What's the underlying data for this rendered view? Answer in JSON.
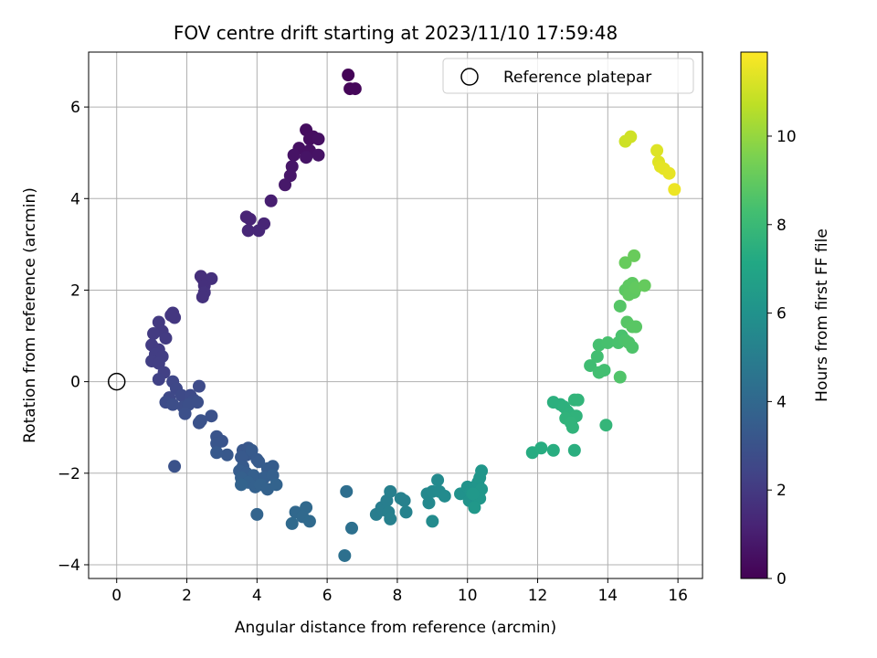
{
  "chart_data": {
    "type": "scatter",
    "title": "FOV centre drift starting at 2023/11/10 17:59:48",
    "xlabel": "Angular distance from reference (arcmin)",
    "ylabel": "Rotation from reference (arcmin)",
    "xlim": [
      -0.8,
      16.7
    ],
    "ylim": [
      -4.3,
      7.2
    ],
    "xticks": [
      "0",
      "2",
      "4",
      "6",
      "8",
      "10",
      "12",
      "14",
      "16"
    ],
    "yticks": [
      "−4",
      "−2",
      "0",
      "2",
      "4",
      "6"
    ],
    "grid": true,
    "legend": {
      "placement": "top-right",
      "entries": [
        "Reference platepar"
      ]
    },
    "reference_point": {
      "x": 0,
      "y": 0,
      "label": "Reference platepar"
    },
    "colorbar": {
      "label": "Hours from first FF file",
      "colormap": "viridis",
      "range": [
        0,
        11.9
      ],
      "ticks": [
        "0",
        "2",
        "4",
        "6",
        "8",
        "10"
      ]
    },
    "points": [
      {
        "x": 6.6,
        "y": 6.7,
        "h": 0.1
      },
      {
        "x": 6.65,
        "y": 6.4,
        "h": 0.15
      },
      {
        "x": 6.8,
        "y": 6.4,
        "h": 0.2
      },
      {
        "x": 5.4,
        "y": 5.5,
        "h": 0.4
      },
      {
        "x": 5.5,
        "y": 5.3,
        "h": 0.45
      },
      {
        "x": 5.6,
        "y": 5.35,
        "h": 0.45
      },
      {
        "x": 5.75,
        "y": 5.3,
        "h": 0.5
      },
      {
        "x": 5.2,
        "y": 5.1,
        "h": 0.55
      },
      {
        "x": 5.5,
        "y": 5.05,
        "h": 0.55
      },
      {
        "x": 5.05,
        "y": 4.95,
        "h": 0.6
      },
      {
        "x": 5.75,
        "y": 4.95,
        "h": 0.6
      },
      {
        "x": 5.4,
        "y": 4.9,
        "h": 0.65
      },
      {
        "x": 5.0,
        "y": 4.7,
        "h": 0.7
      },
      {
        "x": 4.95,
        "y": 4.5,
        "h": 0.75
      },
      {
        "x": 4.8,
        "y": 4.3,
        "h": 0.8
      },
      {
        "x": 4.4,
        "y": 3.95,
        "h": 1.0
      },
      {
        "x": 3.7,
        "y": 3.6,
        "h": 1.2
      },
      {
        "x": 3.8,
        "y": 3.55,
        "h": 1.2
      },
      {
        "x": 4.2,
        "y": 3.45,
        "h": 1.25
      },
      {
        "x": 3.75,
        "y": 3.3,
        "h": 1.3
      },
      {
        "x": 4.05,
        "y": 3.3,
        "h": 1.3
      },
      {
        "x": 2.4,
        "y": 2.3,
        "h": 1.6
      },
      {
        "x": 2.45,
        "y": 2.25,
        "h": 1.6
      },
      {
        "x": 2.7,
        "y": 2.25,
        "h": 1.65
      },
      {
        "x": 2.5,
        "y": 2.1,
        "h": 1.65
      },
      {
        "x": 2.5,
        "y": 1.95,
        "h": 1.7
      },
      {
        "x": 2.45,
        "y": 1.85,
        "h": 1.7
      },
      {
        "x": 1.6,
        "y": 1.5,
        "h": 1.9
      },
      {
        "x": 1.65,
        "y": 1.4,
        "h": 1.9
      },
      {
        "x": 1.55,
        "y": 1.45,
        "h": 1.9
      },
      {
        "x": 1.2,
        "y": 1.3,
        "h": 2.0
      },
      {
        "x": 1.3,
        "y": 1.1,
        "h": 2.0
      },
      {
        "x": 1.05,
        "y": 1.05,
        "h": 2.05
      },
      {
        "x": 1.4,
        "y": 0.95,
        "h": 2.05
      },
      {
        "x": 1.0,
        "y": 0.8,
        "h": 2.1
      },
      {
        "x": 1.2,
        "y": 0.7,
        "h": 2.1
      },
      {
        "x": 1.1,
        "y": 0.6,
        "h": 2.15
      },
      {
        "x": 1.3,
        "y": 0.55,
        "h": 2.15
      },
      {
        "x": 1.0,
        "y": 0.45,
        "h": 2.2
      },
      {
        "x": 1.2,
        "y": 0.4,
        "h": 2.2
      },
      {
        "x": 1.35,
        "y": 0.2,
        "h": 2.25
      },
      {
        "x": 1.2,
        "y": 0.05,
        "h": 2.3
      },
      {
        "x": 1.6,
        "y": 0.0,
        "h": 2.5
      },
      {
        "x": 1.7,
        "y": -0.15,
        "h": 2.55
      },
      {
        "x": 1.5,
        "y": -0.35,
        "h": 2.6
      },
      {
        "x": 1.85,
        "y": -0.3,
        "h": 2.65
      },
      {
        "x": 2.1,
        "y": -0.3,
        "h": 2.7
      },
      {
        "x": 2.35,
        "y": -0.1,
        "h": 2.7
      },
      {
        "x": 2.2,
        "y": -0.4,
        "h": 2.75
      },
      {
        "x": 1.4,
        "y": -0.45,
        "h": 2.75
      },
      {
        "x": 1.6,
        "y": -0.5,
        "h": 2.8
      },
      {
        "x": 1.9,
        "y": -0.55,
        "h": 2.8
      },
      {
        "x": 2.05,
        "y": -0.5,
        "h": 2.85
      },
      {
        "x": 2.3,
        "y": -0.45,
        "h": 2.85
      },
      {
        "x": 1.95,
        "y": -0.7,
        "h": 2.9
      },
      {
        "x": 2.7,
        "y": -0.75,
        "h": 2.95
      },
      {
        "x": 2.35,
        "y": -0.9,
        "h": 2.95
      },
      {
        "x": 2.4,
        "y": -0.85,
        "h": 3.0
      },
      {
        "x": 1.65,
        "y": -1.85,
        "h": 3.0
      },
      {
        "x": 2.85,
        "y": -1.2,
        "h": 3.1
      },
      {
        "x": 3.0,
        "y": -1.3,
        "h": 3.1
      },
      {
        "x": 2.85,
        "y": -1.35,
        "h": 3.15
      },
      {
        "x": 3.6,
        "y": -1.5,
        "h": 3.2
      },
      {
        "x": 3.75,
        "y": -1.45,
        "h": 3.2
      },
      {
        "x": 3.7,
        "y": -1.6,
        "h": 3.25
      },
      {
        "x": 3.15,
        "y": -1.6,
        "h": 3.25
      },
      {
        "x": 3.55,
        "y": -1.65,
        "h": 3.3
      },
      {
        "x": 2.85,
        "y": -1.55,
        "h": 3.3
      },
      {
        "x": 3.85,
        "y": -1.5,
        "h": 3.35
      },
      {
        "x": 4.0,
        "y": -1.7,
        "h": 3.35
      },
      {
        "x": 4.05,
        "y": -1.75,
        "h": 3.4
      },
      {
        "x": 3.6,
        "y": -1.85,
        "h": 3.4
      },
      {
        "x": 4.3,
        "y": -1.9,
        "h": 3.45
      },
      {
        "x": 4.45,
        "y": -1.85,
        "h": 3.45
      },
      {
        "x": 3.5,
        "y": -1.95,
        "h": 3.5
      },
      {
        "x": 3.7,
        "y": -2.0,
        "h": 3.5
      },
      {
        "x": 3.9,
        "y": -2.05,
        "h": 3.55
      },
      {
        "x": 4.2,
        "y": -2.1,
        "h": 3.55
      },
      {
        "x": 4.45,
        "y": -2.05,
        "h": 3.6
      },
      {
        "x": 3.55,
        "y": -2.1,
        "h": 3.6
      },
      {
        "x": 3.75,
        "y": -2.2,
        "h": 3.65
      },
      {
        "x": 3.95,
        "y": -2.3,
        "h": 3.65
      },
      {
        "x": 4.1,
        "y": -2.25,
        "h": 3.7
      },
      {
        "x": 4.3,
        "y": -2.35,
        "h": 3.7
      },
      {
        "x": 4.55,
        "y": -2.25,
        "h": 3.75
      },
      {
        "x": 3.55,
        "y": -2.25,
        "h": 3.75
      },
      {
        "x": 4.0,
        "y": -2.9,
        "h": 3.8
      },
      {
        "x": 5.1,
        "y": -2.85,
        "h": 4.0
      },
      {
        "x": 5.4,
        "y": -2.75,
        "h": 4.05
      },
      {
        "x": 5.3,
        "y": -2.95,
        "h": 4.05
      },
      {
        "x": 5.0,
        "y": -3.1,
        "h": 4.1
      },
      {
        "x": 5.5,
        "y": -3.05,
        "h": 4.1
      },
      {
        "x": 6.55,
        "y": -2.4,
        "h": 4.3
      },
      {
        "x": 6.7,
        "y": -3.2,
        "h": 4.4
      },
      {
        "x": 6.5,
        "y": -3.8,
        "h": 4.4
      },
      {
        "x": 7.4,
        "y": -2.9,
        "h": 5.0
      },
      {
        "x": 7.55,
        "y": -2.75,
        "h": 5.0
      },
      {
        "x": 7.6,
        "y": -2.8,
        "h": 5.05
      },
      {
        "x": 7.7,
        "y": -2.6,
        "h": 5.05
      },
      {
        "x": 7.8,
        "y": -2.4,
        "h": 5.1
      },
      {
        "x": 7.75,
        "y": -2.85,
        "h": 5.1
      },
      {
        "x": 7.8,
        "y": -3.0,
        "h": 5.15
      },
      {
        "x": 8.1,
        "y": -2.55,
        "h": 5.2
      },
      {
        "x": 8.2,
        "y": -2.6,
        "h": 5.2
      },
      {
        "x": 8.25,
        "y": -2.85,
        "h": 5.25
      },
      {
        "x": 8.85,
        "y": -2.45,
        "h": 5.5
      },
      {
        "x": 8.9,
        "y": -2.65,
        "h": 5.5
      },
      {
        "x": 9.0,
        "y": -2.4,
        "h": 5.55
      },
      {
        "x": 9.15,
        "y": -2.15,
        "h": 5.6
      },
      {
        "x": 9.2,
        "y": -2.4,
        "h": 5.6
      },
      {
        "x": 9.35,
        "y": -2.5,
        "h": 5.65
      },
      {
        "x": 9.0,
        "y": -3.05,
        "h": 5.65
      },
      {
        "x": 9.8,
        "y": -2.45,
        "h": 6.0
      },
      {
        "x": 10.0,
        "y": -2.3,
        "h": 6.05
      },
      {
        "x": 10.05,
        "y": -2.6,
        "h": 6.05
      },
      {
        "x": 10.1,
        "y": -2.4,
        "h": 6.1
      },
      {
        "x": 10.2,
        "y": -2.3,
        "h": 6.1
      },
      {
        "x": 10.25,
        "y": -2.5,
        "h": 6.15
      },
      {
        "x": 10.3,
        "y": -2.2,
        "h": 6.15
      },
      {
        "x": 10.35,
        "y": -2.1,
        "h": 6.2
      },
      {
        "x": 10.4,
        "y": -1.95,
        "h": 6.2
      },
      {
        "x": 10.4,
        "y": -2.35,
        "h": 6.25
      },
      {
        "x": 10.35,
        "y": -2.55,
        "h": 6.25
      },
      {
        "x": 10.2,
        "y": -2.75,
        "h": 6.3
      },
      {
        "x": 10.15,
        "y": -2.45,
        "h": 6.3
      },
      {
        "x": 11.85,
        "y": -1.55,
        "h": 7.3
      },
      {
        "x": 12.1,
        "y": -1.45,
        "h": 7.35
      },
      {
        "x": 12.45,
        "y": -1.5,
        "h": 7.4
      },
      {
        "x": 13.05,
        "y": -1.5,
        "h": 7.45
      },
      {
        "x": 12.45,
        "y": -0.45,
        "h": 7.5
      },
      {
        "x": 12.65,
        "y": -0.5,
        "h": 7.5
      },
      {
        "x": 12.75,
        "y": -0.55,
        "h": 7.55
      },
      {
        "x": 12.85,
        "y": -0.65,
        "h": 7.55
      },
      {
        "x": 12.9,
        "y": -0.7,
        "h": 7.6
      },
      {
        "x": 13.0,
        "y": -0.75,
        "h": 7.6
      },
      {
        "x": 13.1,
        "y": -0.75,
        "h": 7.65
      },
      {
        "x": 12.8,
        "y": -0.8,
        "h": 7.65
      },
      {
        "x": 12.95,
        "y": -0.9,
        "h": 7.7
      },
      {
        "x": 13.0,
        "y": -1.0,
        "h": 7.7
      },
      {
        "x": 13.05,
        "y": -0.4,
        "h": 7.75
      },
      {
        "x": 13.15,
        "y": -0.4,
        "h": 7.75
      },
      {
        "x": 13.95,
        "y": -0.95,
        "h": 7.8
      },
      {
        "x": 13.5,
        "y": 0.35,
        "h": 8.2
      },
      {
        "x": 13.7,
        "y": 0.55,
        "h": 8.25
      },
      {
        "x": 13.75,
        "y": 0.2,
        "h": 8.3
      },
      {
        "x": 13.9,
        "y": 0.25,
        "h": 8.3
      },
      {
        "x": 13.75,
        "y": 0.8,
        "h": 8.35
      },
      {
        "x": 14.0,
        "y": 0.85,
        "h": 8.4
      },
      {
        "x": 14.3,
        "y": 0.85,
        "h": 8.45
      },
      {
        "x": 14.4,
        "y": 1.0,
        "h": 8.45
      },
      {
        "x": 14.5,
        "y": 0.9,
        "h": 8.5
      },
      {
        "x": 14.6,
        "y": 0.85,
        "h": 8.55
      },
      {
        "x": 14.7,
        "y": 0.75,
        "h": 8.55
      },
      {
        "x": 14.35,
        "y": 0.1,
        "h": 8.6
      },
      {
        "x": 14.35,
        "y": 1.65,
        "h": 8.7
      },
      {
        "x": 14.55,
        "y": 1.3,
        "h": 8.75
      },
      {
        "x": 14.7,
        "y": 1.2,
        "h": 8.8
      },
      {
        "x": 14.8,
        "y": 1.2,
        "h": 8.8
      },
      {
        "x": 14.5,
        "y": 2.0,
        "h": 8.85
      },
      {
        "x": 14.6,
        "y": 2.1,
        "h": 8.9
      },
      {
        "x": 14.7,
        "y": 2.15,
        "h": 8.9
      },
      {
        "x": 14.6,
        "y": 1.9,
        "h": 8.95
      },
      {
        "x": 14.75,
        "y": 1.95,
        "h": 8.95
      },
      {
        "x": 14.8,
        "y": 2.05,
        "h": 9.0
      },
      {
        "x": 15.05,
        "y": 2.1,
        "h": 9.05
      },
      {
        "x": 14.5,
        "y": 2.6,
        "h": 9.1
      },
      {
        "x": 14.75,
        "y": 2.75,
        "h": 9.15
      },
      {
        "x": 14.5,
        "y": 5.25,
        "h": 11.0
      },
      {
        "x": 14.65,
        "y": 5.35,
        "h": 11.05
      },
      {
        "x": 15.4,
        "y": 5.05,
        "h": 11.3
      },
      {
        "x": 15.45,
        "y": 4.8,
        "h": 11.35
      },
      {
        "x": 15.5,
        "y": 4.7,
        "h": 11.4
      },
      {
        "x": 15.6,
        "y": 4.65,
        "h": 11.45
      },
      {
        "x": 15.75,
        "y": 4.55,
        "h": 11.5
      },
      {
        "x": 15.9,
        "y": 4.2,
        "h": 11.6
      }
    ]
  }
}
